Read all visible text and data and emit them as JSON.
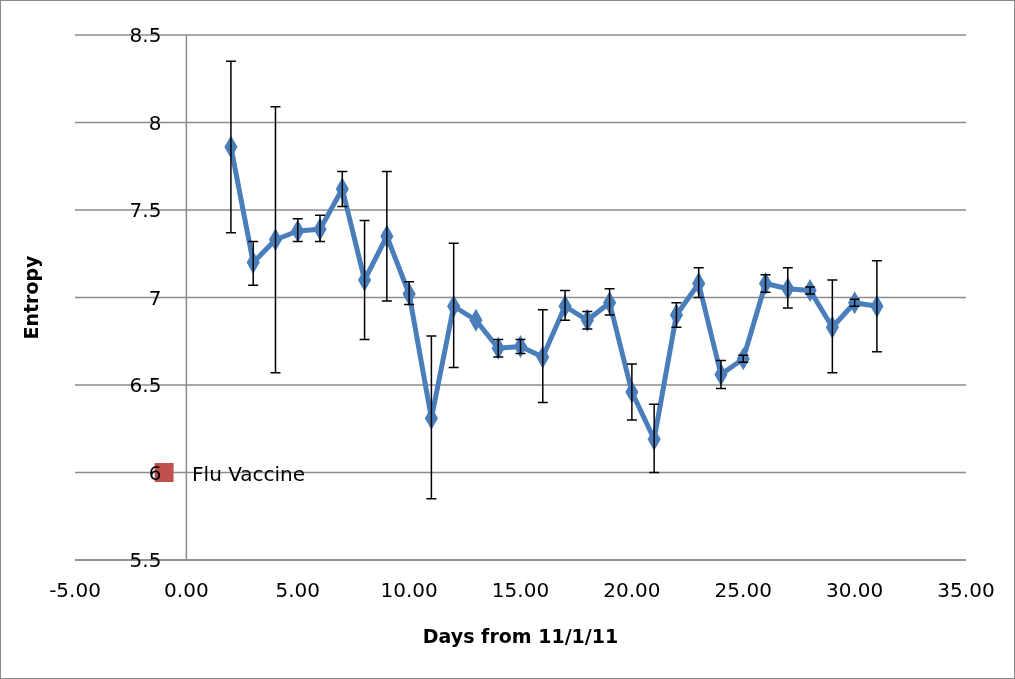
{
  "chart_data": {
    "type": "line",
    "xlabel": "Days from 11/1/11",
    "ylabel": "Entropy",
    "xlim": [
      -5,
      35
    ],
    "xticks": [
      {
        "value": -5,
        "label": "-5.00"
      },
      {
        "value": 0,
        "label": "0.00"
      },
      {
        "value": 5,
        "label": "5.00"
      },
      {
        "value": 10,
        "label": "10.00"
      },
      {
        "value": 15,
        "label": "15.00"
      },
      {
        "value": 20,
        "label": "20.00"
      },
      {
        "value": 25,
        "label": "25.00"
      },
      {
        "value": 30,
        "label": "30.00"
      },
      {
        "value": 35,
        "label": "35.00"
      }
    ],
    "ylim": [
      5.5,
      8.5
    ],
    "yticks": [
      5.5,
      6,
      6.5,
      7,
      7.5,
      8,
      8.5
    ],
    "grid": "y",
    "series": [
      {
        "color": "#4a7ebb",
        "marker": "diamond",
        "x": [
          2,
          3,
          4,
          5,
          6,
          7,
          8,
          9,
          10,
          11,
          12,
          13,
          14,
          15,
          16,
          17,
          18,
          19,
          20,
          21,
          22,
          23,
          24,
          25,
          26,
          27,
          28,
          29,
          30,
          31
        ],
        "values": [
          7.86,
          7.2,
          7.33,
          7.38,
          7.39,
          7.62,
          7.1,
          7.35,
          7.02,
          6.31,
          6.95,
          6.87,
          6.71,
          6.72,
          6.66,
          6.95,
          6.87,
          6.97,
          6.46,
          6.19,
          6.9,
          7.08,
          6.56,
          6.65,
          7.08,
          7.05,
          7.04,
          6.83,
          6.97,
          6.95
        ],
        "errors": [
          [
            7.37,
            8.35
          ],
          [
            7.07,
            7.32
          ],
          [
            6.57,
            8.09
          ],
          [
            7.32,
            7.45
          ],
          [
            7.32,
            7.47
          ],
          [
            7.52,
            7.72
          ],
          [
            6.76,
            7.44
          ],
          [
            6.98,
            7.72
          ],
          [
            6.96,
            7.09
          ],
          [
            5.85,
            6.78
          ],
          [
            6.6,
            7.31
          ],
          null,
          [
            6.66,
            6.76
          ],
          [
            6.68,
            6.76
          ],
          [
            6.4,
            6.93
          ],
          [
            6.87,
            7.04
          ],
          [
            6.82,
            6.92
          ],
          [
            6.9,
            7.05
          ],
          [
            6.3,
            6.62
          ],
          [
            6.0,
            6.39
          ],
          [
            6.83,
            6.97
          ],
          [
            7.0,
            7.17
          ],
          [
            6.48,
            6.64
          ],
          [
            6.63,
            6.67
          ],
          [
            7.03,
            7.13
          ],
          [
            6.94,
            7.17
          ],
          [
            7.02,
            7.06
          ],
          [
            6.57,
            7.1
          ],
          [
            6.95,
            6.99
          ],
          [
            6.69,
            7.21
          ]
        ]
      },
      {
        "type": "scatter",
        "name": "Flu Vaccine",
        "color": "#c0504d",
        "marker": "square",
        "x": [
          -1
        ],
        "values": [
          6
        ]
      }
    ]
  }
}
